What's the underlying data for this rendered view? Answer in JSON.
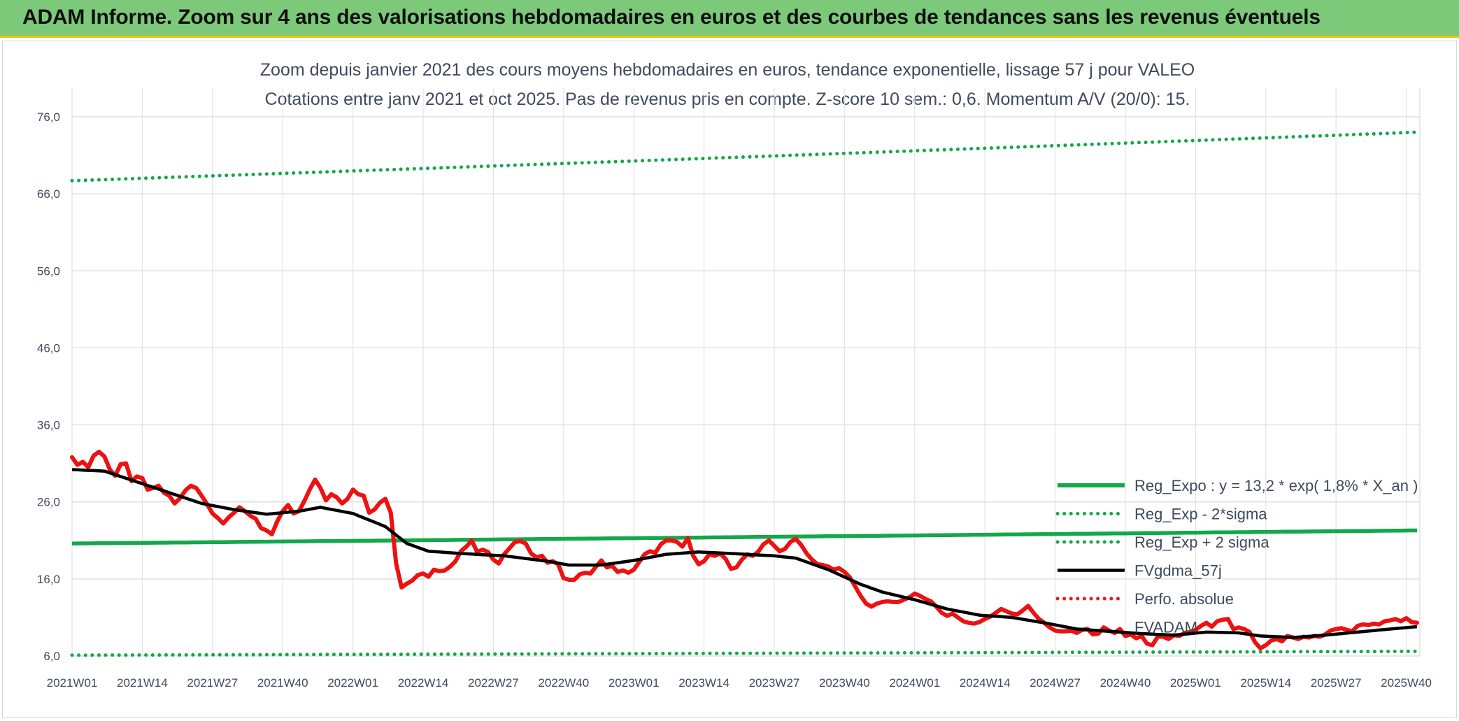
{
  "banner": {
    "title": "ADAM Informe. Zoom sur 4 ans des valorisations hebdomadaires en euros et des courbes de tendances sans les revenus éventuels"
  },
  "chart_data": {
    "type": "line",
    "title": "Zoom depuis janvier 2021 des cours moyens hebdomadaires en euros, tendance exponentielle, lissage 57 j pour VALEO",
    "subtitle": "Cotations entre janv 2021 et oct 2025. Pas de revenus pris en compte. Z-score 10 sem.: 0,6. Momentum A/V (20/0): 15.",
    "xlabel": "",
    "ylabel": "",
    "ylim": [
      6,
      76
    ],
    "y_ticks": [
      "6,0",
      "16,0",
      "26,0",
      "36,0",
      "46,0",
      "56,0",
      "66,0",
      "76,0"
    ],
    "y_tick_values": [
      6,
      16,
      26,
      36,
      46,
      56,
      66,
      76
    ],
    "x_count": 250,
    "x_tick_labels": [
      "2021W01",
      "2021W14",
      "2021W27",
      "2021W40",
      "2022W01",
      "2022W14",
      "2022W27",
      "2022W40",
      "2023W01",
      "2023W14",
      "2023W27",
      "2023W40",
      "2024W01",
      "2024W14",
      "2024W27",
      "2024W40",
      "2025W01",
      "2025W14",
      "2025W27",
      "2025W40"
    ],
    "x_tick_index": [
      0,
      13,
      26,
      39,
      52,
      65,
      78,
      91,
      104,
      117,
      130,
      143,
      156,
      169,
      182,
      195,
      208,
      221,
      234,
      247
    ],
    "grid": true,
    "legend_position": "bottom-right",
    "series": [
      {
        "key": "reg",
        "name": "Reg_Expo : y = 13,2 * exp( 1,8% *  X_an )",
        "color": "#12a84b",
        "style": "solid-thick",
        "start": 20.6,
        "end": 22.3
      },
      {
        "key": "low",
        "name": "Reg_Exp - 2*sigma",
        "color": "#12a84b",
        "style": "dotted",
        "start": 6.1,
        "end": 6.6
      },
      {
        "key": "high",
        "name": "Reg_Exp + 2 sigma",
        "color": "#12a84b",
        "style": "dotted",
        "start": 67.7,
        "end": 74.0
      },
      {
        "key": "smooth",
        "name": "FVgdma_57j",
        "color": "#000000",
        "style": "solid",
        "anchors": [
          [
            0,
            30.2
          ],
          [
            6,
            30.0
          ],
          [
            12,
            28.6
          ],
          [
            18,
            27.2
          ],
          [
            24,
            25.8
          ],
          [
            30,
            25.0
          ],
          [
            36,
            24.4
          ],
          [
            42,
            24.8
          ],
          [
            46,
            25.3
          ],
          [
            52,
            24.5
          ],
          [
            58,
            22.8
          ],
          [
            62,
            20.6
          ],
          [
            66,
            19.6
          ],
          [
            72,
            19.3
          ],
          [
            80,
            19.0
          ],
          [
            88,
            18.3
          ],
          [
            92,
            17.8
          ],
          [
            98,
            17.8
          ],
          [
            104,
            18.4
          ],
          [
            110,
            19.2
          ],
          [
            116,
            19.5
          ],
          [
            122,
            19.3
          ],
          [
            130,
            19.0
          ],
          [
            134,
            18.7
          ],
          [
            140,
            17.2
          ],
          [
            146,
            15.3
          ],
          [
            150,
            14.3
          ],
          [
            156,
            13.3
          ],
          [
            162,
            12.1
          ],
          [
            168,
            11.3
          ],
          [
            174,
            11.0
          ],
          [
            180,
            10.3
          ],
          [
            186,
            9.5
          ],
          [
            192,
            9.2
          ],
          [
            198,
            8.9
          ],
          [
            204,
            8.7
          ],
          [
            210,
            9.1
          ],
          [
            216,
            9.0
          ],
          [
            220,
            8.6
          ],
          [
            226,
            8.4
          ],
          [
            232,
            8.7
          ],
          [
            238,
            9.1
          ],
          [
            244,
            9.5
          ],
          [
            249,
            9.8
          ]
        ]
      },
      {
        "key": "perf",
        "name": "Perfo. absolue",
        "color": "#e31e1e",
        "style": "dotted"
      },
      {
        "key": "fv",
        "name": "FVADAM",
        "color": "#ee1111",
        "style": "solid-thick",
        "anchors": [
          [
            0,
            31.8
          ],
          [
            1,
            30.8
          ],
          [
            2,
            31.2
          ],
          [
            3,
            30.5
          ],
          [
            4,
            32.0
          ],
          [
            5,
            32.5
          ],
          [
            6,
            31.9
          ],
          [
            7,
            30.2
          ],
          [
            8,
            29.4
          ],
          [
            9,
            30.9
          ],
          [
            10,
            31.0
          ],
          [
            11,
            28.7
          ],
          [
            12,
            29.3
          ],
          [
            13,
            29.1
          ],
          [
            14,
            27.6
          ],
          [
            15,
            27.8
          ],
          [
            16,
            28.1
          ],
          [
            17,
            27.2
          ],
          [
            18,
            26.8
          ],
          [
            19,
            25.8
          ],
          [
            20,
            26.5
          ],
          [
            21,
            27.5
          ],
          [
            22,
            28.1
          ],
          [
            23,
            27.8
          ],
          [
            24,
            26.8
          ],
          [
            25,
            25.7
          ],
          [
            26,
            24.5
          ],
          [
            27,
            23.9
          ],
          [
            28,
            23.2
          ],
          [
            29,
            24.0
          ],
          [
            30,
            24.6
          ],
          [
            31,
            25.3
          ],
          [
            32,
            24.8
          ],
          [
            33,
            24.2
          ],
          [
            34,
            23.8
          ],
          [
            35,
            22.6
          ],
          [
            36,
            22.3
          ],
          [
            37,
            21.8
          ],
          [
            38,
            23.5
          ],
          [
            39,
            24.8
          ],
          [
            40,
            25.6
          ],
          [
            41,
            24.5
          ],
          [
            42,
            24.8
          ],
          [
            43,
            26.1
          ],
          [
            44,
            27.6
          ],
          [
            45,
            28.9
          ],
          [
            46,
            27.8
          ],
          [
            47,
            26.2
          ],
          [
            48,
            27.0
          ],
          [
            49,
            26.6
          ],
          [
            50,
            25.8
          ],
          [
            51,
            26.4
          ],
          [
            52,
            27.6
          ],
          [
            53,
            27.0
          ],
          [
            54,
            26.8
          ],
          [
            55,
            24.6
          ],
          [
            56,
            25.0
          ],
          [
            57,
            25.9
          ],
          [
            58,
            26.4
          ],
          [
            59,
            24.6
          ],
          [
            60,
            18.0
          ],
          [
            61,
            14.9
          ],
          [
            62,
            15.4
          ],
          [
            63,
            15.8
          ],
          [
            64,
            16.5
          ],
          [
            65,
            16.7
          ],
          [
            66,
            16.3
          ],
          [
            67,
            17.2
          ],
          [
            68,
            17.0
          ],
          [
            69,
            17.1
          ],
          [
            70,
            17.6
          ],
          [
            71,
            18.3
          ],
          [
            72,
            19.6
          ],
          [
            73,
            20.2
          ],
          [
            74,
            21.0
          ],
          [
            75,
            19.5
          ],
          [
            76,
            19.8
          ],
          [
            77,
            19.5
          ],
          [
            78,
            18.5
          ],
          [
            79,
            18.0
          ],
          [
            80,
            19.2
          ],
          [
            81,
            20.0
          ],
          [
            82,
            20.8
          ],
          [
            83,
            20.9
          ],
          [
            84,
            20.6
          ],
          [
            85,
            19.3
          ],
          [
            86,
            18.8
          ],
          [
            87,
            19.0
          ],
          [
            88,
            18.1
          ],
          [
            89,
            18.3
          ],
          [
            90,
            17.9
          ],
          [
            91,
            16.1
          ],
          [
            92,
            15.9
          ],
          [
            93,
            15.9
          ],
          [
            94,
            16.6
          ],
          [
            95,
            16.8
          ],
          [
            96,
            16.7
          ],
          [
            97,
            17.6
          ],
          [
            98,
            18.4
          ],
          [
            99,
            17.5
          ],
          [
            100,
            17.7
          ],
          [
            101,
            16.9
          ],
          [
            102,
            17.1
          ],
          [
            103,
            16.8
          ],
          [
            104,
            17.2
          ],
          [
            105,
            18.2
          ],
          [
            106,
            19.2
          ],
          [
            107,
            19.6
          ],
          [
            108,
            19.4
          ],
          [
            109,
            20.5
          ],
          [
            110,
            21.0
          ],
          [
            111,
            21.0
          ],
          [
            112,
            20.8
          ],
          [
            113,
            20.2
          ],
          [
            114,
            21.3
          ],
          [
            115,
            19.0
          ],
          [
            116,
            17.9
          ],
          [
            117,
            18.3
          ],
          [
            118,
            19.2
          ],
          [
            119,
            19.0
          ],
          [
            120,
            19.3
          ],
          [
            121,
            18.6
          ],
          [
            122,
            17.3
          ],
          [
            123,
            17.5
          ],
          [
            124,
            18.5
          ],
          [
            125,
            19.2
          ],
          [
            126,
            19.0
          ],
          [
            127,
            19.5
          ],
          [
            128,
            20.5
          ],
          [
            129,
            21.0
          ],
          [
            130,
            20.3
          ],
          [
            131,
            19.6
          ],
          [
            132,
            19.9
          ],
          [
            133,
            20.8
          ],
          [
            134,
            21.2
          ],
          [
            135,
            20.4
          ],
          [
            136,
            19.3
          ],
          [
            137,
            18.5
          ],
          [
            138,
            17.9
          ],
          [
            139,
            17.8
          ],
          [
            140,
            17.6
          ],
          [
            141,
            17.2
          ],
          [
            142,
            17.4
          ],
          [
            143,
            16.9
          ],
          [
            144,
            16.2
          ],
          [
            145,
            15.0
          ],
          [
            146,
            13.8
          ],
          [
            147,
            12.8
          ],
          [
            148,
            12.4
          ],
          [
            149,
            12.8
          ],
          [
            150,
            13.0
          ],
          [
            151,
            13.1
          ],
          [
            152,
            13.0
          ],
          [
            153,
            13.0
          ],
          [
            154,
            13.3
          ],
          [
            155,
            13.6
          ],
          [
            156,
            14.1
          ],
          [
            157,
            13.8
          ],
          [
            158,
            13.4
          ],
          [
            159,
            13.1
          ],
          [
            160,
            12.4
          ],
          [
            161,
            11.6
          ],
          [
            162,
            11.2
          ],
          [
            163,
            11.5
          ],
          [
            164,
            11.0
          ],
          [
            165,
            10.5
          ],
          [
            166,
            10.3
          ],
          [
            167,
            10.2
          ],
          [
            168,
            10.4
          ],
          [
            169,
            10.8
          ],
          [
            170,
            11.1
          ],
          [
            171,
            11.6
          ],
          [
            172,
            12.1
          ],
          [
            173,
            11.8
          ],
          [
            174,
            11.5
          ],
          [
            175,
            11.4
          ],
          [
            176,
            11.9
          ],
          [
            177,
            12.5
          ],
          [
            178,
            11.6
          ],
          [
            179,
            10.8
          ],
          [
            180,
            10.3
          ],
          [
            181,
            9.7
          ],
          [
            182,
            9.3
          ],
          [
            183,
            9.2
          ],
          [
            184,
            9.2
          ],
          [
            185,
            9.3
          ],
          [
            186,
            9.0
          ],
          [
            187,
            9.4
          ],
          [
            188,
            9.5
          ],
          [
            189,
            8.8
          ],
          [
            190,
            8.9
          ],
          [
            191,
            9.7
          ],
          [
            192,
            9.3
          ],
          [
            193,
            9.0
          ],
          [
            194,
            9.5
          ],
          [
            195,
            8.6
          ],
          [
            196,
            8.8
          ],
          [
            197,
            8.3
          ],
          [
            198,
            8.6
          ],
          [
            199,
            7.6
          ],
          [
            200,
            7.4
          ],
          [
            201,
            8.5
          ],
          [
            202,
            8.5
          ],
          [
            203,
            8.2
          ],
          [
            204,
            8.7
          ],
          [
            205,
            8.6
          ],
          [
            206,
            9.0
          ],
          [
            207,
            9.1
          ],
          [
            208,
            9.4
          ],
          [
            209,
            9.9
          ],
          [
            210,
            10.3
          ],
          [
            211,
            9.8
          ],
          [
            212,
            10.5
          ],
          [
            213,
            10.7
          ],
          [
            214,
            10.8
          ],
          [
            215,
            9.5
          ],
          [
            216,
            9.7
          ],
          [
            217,
            9.5
          ],
          [
            218,
            9.1
          ],
          [
            219,
            7.8
          ],
          [
            220,
            7.0
          ],
          [
            221,
            7.4
          ],
          [
            222,
            8.0
          ],
          [
            223,
            8.2
          ],
          [
            224,
            7.9
          ],
          [
            225,
            8.6
          ],
          [
            226,
            8.4
          ],
          [
            227,
            8.2
          ],
          [
            228,
            8.5
          ],
          [
            229,
            8.4
          ],
          [
            230,
            8.6
          ],
          [
            231,
            8.5
          ],
          [
            232,
            8.8
          ],
          [
            233,
            9.3
          ],
          [
            234,
            9.5
          ],
          [
            235,
            9.6
          ],
          [
            236,
            9.4
          ],
          [
            237,
            9.2
          ],
          [
            238,
            9.9
          ],
          [
            239,
            10.1
          ],
          [
            240,
            10.0
          ],
          [
            241,
            10.2
          ],
          [
            242,
            10.1
          ],
          [
            243,
            10.5
          ],
          [
            244,
            10.6
          ],
          [
            245,
            10.8
          ],
          [
            246,
            10.5
          ],
          [
            247,
            10.9
          ],
          [
            248,
            10.4
          ],
          [
            249,
            10.3
          ]
        ]
      }
    ]
  }
}
